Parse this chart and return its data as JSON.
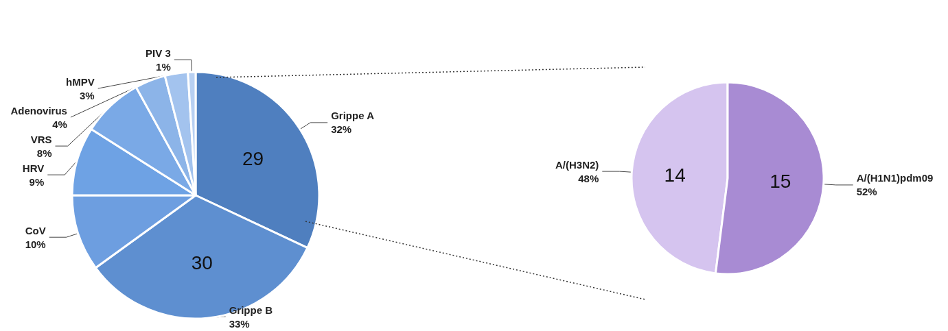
{
  "chart_data": [
    {
      "type": "pie",
      "categories": [
        "Grippe A",
        "Grippe B",
        "CoV",
        "HRV",
        "VRS",
        "Adenovirus",
        "hMPV",
        "PIV 3"
      ],
      "values": [
        32,
        33,
        10,
        9,
        8,
        4,
        3,
        1
      ],
      "value_labels": [
        "32%",
        "33%",
        "10%",
        "9%",
        "8%",
        "4%",
        "3%",
        "1%"
      ],
      "annotations": [
        "29",
        "30"
      ],
      "colors": [
        "#4f7fbf",
        "#5e8fd0",
        "#6d9ee0",
        "#6ea2e4",
        "#7aa9e6",
        "#8cb4e8",
        "#a3c3ee",
        "#b8d0f2"
      ]
    },
    {
      "type": "pie",
      "categories": [
        "A/(H3N2)",
        "A/(H1N1)pdm09"
      ],
      "values": [
        48,
        52
      ],
      "value_labels": [
        "48%",
        "52%"
      ],
      "annotations": [
        "14",
        "15"
      ],
      "colors": [
        "#d5c4ef",
        "#a88bd3"
      ]
    }
  ]
}
